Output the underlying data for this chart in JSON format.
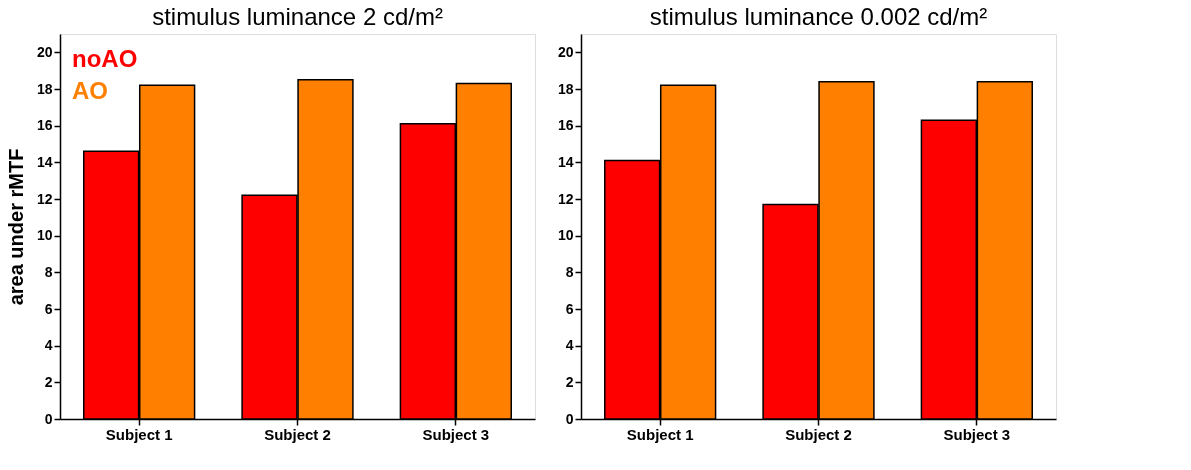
{
  "chart_data": [
    {
      "type": "bar",
      "title": "stimulus luminance 2 cd/m²",
      "ylabel": "area under rMTF",
      "categories": [
        "Subject 1",
        "Subject 2",
        "Subject 3"
      ],
      "series": [
        {
          "name": "noAO",
          "color": "#ff0000",
          "values": [
            14.6,
            12.2,
            16.1
          ]
        },
        {
          "name": "AO",
          "color": "#ff8000",
          "values": [
            18.2,
            18.5,
            18.3
          ]
        }
      ],
      "ylim": [
        0,
        21
      ],
      "yticks": [
        0,
        2,
        4,
        6,
        8,
        10,
        12,
        14,
        16,
        18,
        20
      ],
      "grid": false,
      "legend": "top left"
    },
    {
      "type": "bar",
      "title": "stimulus luminance 0.002 cd/m²",
      "categories": [
        "Subject 1",
        "Subject 2",
        "Subject 3"
      ],
      "series": [
        {
          "color": "#ff0000",
          "values": [
            14.1,
            11.7,
            16.3
          ]
        },
        {
          "color": "#ff8000",
          "values": [
            18.2,
            18.4,
            18.4
          ]
        }
      ],
      "ylim": [
        0,
        21
      ],
      "yticks": [
        0,
        2,
        4,
        6,
        8,
        10,
        12,
        14,
        16,
        18,
        20
      ],
      "grid": false
    }
  ]
}
